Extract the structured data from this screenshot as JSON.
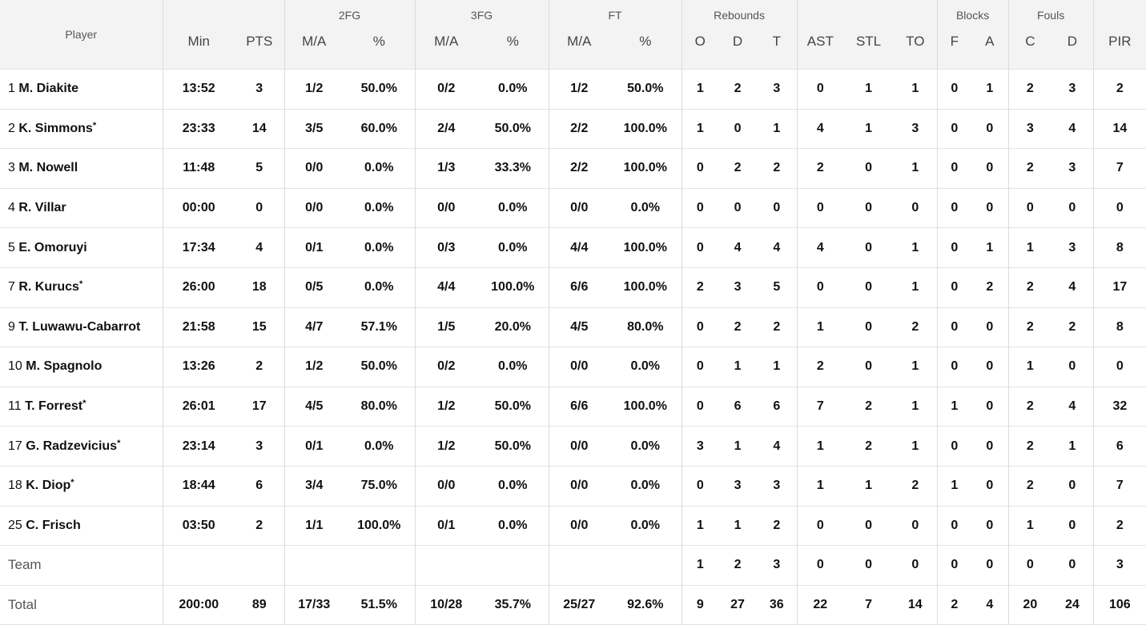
{
  "groups": {
    "fg2": "2FG",
    "fg3": "3FG",
    "ft": "FT",
    "rebounds": "Rebounds",
    "blocks": "Blocks",
    "fouls": "Fouls"
  },
  "headers": {
    "player": "Player",
    "min": "Min",
    "pts": "PTS",
    "fg2_ma": "M/A",
    "fg2_pct": "%",
    "fg3_ma": "M/A",
    "fg3_pct": "%",
    "ft_ma": "M/A",
    "ft_pct": "%",
    "reb_o": "O",
    "reb_d": "D",
    "reb_t": "T",
    "ast": "AST",
    "stl": "STL",
    "to": "TO",
    "blk_f": "F",
    "blk_a": "A",
    "foul_c": "C",
    "foul_d": "D",
    "pir": "PIR"
  },
  "players": [
    {
      "num": "1",
      "name": "M. Diakite",
      "star": "",
      "min": "13:52",
      "pts": "3",
      "fg2_ma": "1/2",
      "fg2_pct": "50.0%",
      "fg3_ma": "0/2",
      "fg3_pct": "0.0%",
      "ft_ma": "1/2",
      "ft_pct": "50.0%",
      "reb_o": "1",
      "reb_d": "2",
      "reb_t": "3",
      "ast": "0",
      "stl": "1",
      "to": "1",
      "blk_f": "0",
      "blk_a": "1",
      "foul_c": "2",
      "foul_d": "3",
      "pir": "2"
    },
    {
      "num": "2",
      "name": "K. Simmons",
      "star": "*",
      "min": "23:33",
      "pts": "14",
      "fg2_ma": "3/5",
      "fg2_pct": "60.0%",
      "fg3_ma": "2/4",
      "fg3_pct": "50.0%",
      "ft_ma": "2/2",
      "ft_pct": "100.0%",
      "reb_o": "1",
      "reb_d": "0",
      "reb_t": "1",
      "ast": "4",
      "stl": "1",
      "to": "3",
      "blk_f": "0",
      "blk_a": "0",
      "foul_c": "3",
      "foul_d": "4",
      "pir": "14"
    },
    {
      "num": "3",
      "name": "M. Nowell",
      "star": "",
      "min": "11:48",
      "pts": "5",
      "fg2_ma": "0/0",
      "fg2_pct": "0.0%",
      "fg3_ma": "1/3",
      "fg3_pct": "33.3%",
      "ft_ma": "2/2",
      "ft_pct": "100.0%",
      "reb_o": "0",
      "reb_d": "2",
      "reb_t": "2",
      "ast": "2",
      "stl": "0",
      "to": "1",
      "blk_f": "0",
      "blk_a": "0",
      "foul_c": "2",
      "foul_d": "3",
      "pir": "7"
    },
    {
      "num": "4",
      "name": "R. Villar",
      "star": "",
      "min": "00:00",
      "pts": "0",
      "fg2_ma": "0/0",
      "fg2_pct": "0.0%",
      "fg3_ma": "0/0",
      "fg3_pct": "0.0%",
      "ft_ma": "0/0",
      "ft_pct": "0.0%",
      "reb_o": "0",
      "reb_d": "0",
      "reb_t": "0",
      "ast": "0",
      "stl": "0",
      "to": "0",
      "blk_f": "0",
      "blk_a": "0",
      "foul_c": "0",
      "foul_d": "0",
      "pir": "0"
    },
    {
      "num": "5",
      "name": "E. Omoruyi",
      "star": "",
      "min": "17:34",
      "pts": "4",
      "fg2_ma": "0/1",
      "fg2_pct": "0.0%",
      "fg3_ma": "0/3",
      "fg3_pct": "0.0%",
      "ft_ma": "4/4",
      "ft_pct": "100.0%",
      "reb_o": "0",
      "reb_d": "4",
      "reb_t": "4",
      "ast": "4",
      "stl": "0",
      "to": "1",
      "blk_f": "0",
      "blk_a": "1",
      "foul_c": "1",
      "foul_d": "3",
      "pir": "8"
    },
    {
      "num": "7",
      "name": "R. Kurucs",
      "star": "*",
      "min": "26:00",
      "pts": "18",
      "fg2_ma": "0/5",
      "fg2_pct": "0.0%",
      "fg3_ma": "4/4",
      "fg3_pct": "100.0%",
      "ft_ma": "6/6",
      "ft_pct": "100.0%",
      "reb_o": "2",
      "reb_d": "3",
      "reb_t": "5",
      "ast": "0",
      "stl": "0",
      "to": "1",
      "blk_f": "0",
      "blk_a": "2",
      "foul_c": "2",
      "foul_d": "4",
      "pir": "17"
    },
    {
      "num": "9",
      "name": "T. Luwawu-Cabarrot",
      "star": "",
      "min": "21:58",
      "pts": "15",
      "fg2_ma": "4/7",
      "fg2_pct": "57.1%",
      "fg3_ma": "1/5",
      "fg3_pct": "20.0%",
      "ft_ma": "4/5",
      "ft_pct": "80.0%",
      "reb_o": "0",
      "reb_d": "2",
      "reb_t": "2",
      "ast": "1",
      "stl": "0",
      "to": "2",
      "blk_f": "0",
      "blk_a": "0",
      "foul_c": "2",
      "foul_d": "2",
      "pir": "8"
    },
    {
      "num": "10",
      "name": "M. Spagnolo",
      "star": "",
      "min": "13:26",
      "pts": "2",
      "fg2_ma": "1/2",
      "fg2_pct": "50.0%",
      "fg3_ma": "0/2",
      "fg3_pct": "0.0%",
      "ft_ma": "0/0",
      "ft_pct": "0.0%",
      "reb_o": "0",
      "reb_d": "1",
      "reb_t": "1",
      "ast": "2",
      "stl": "0",
      "to": "1",
      "blk_f": "0",
      "blk_a": "0",
      "foul_c": "1",
      "foul_d": "0",
      "pir": "0"
    },
    {
      "num": "11",
      "name": "T. Forrest",
      "star": "*",
      "min": "26:01",
      "pts": "17",
      "fg2_ma": "4/5",
      "fg2_pct": "80.0%",
      "fg3_ma": "1/2",
      "fg3_pct": "50.0%",
      "ft_ma": "6/6",
      "ft_pct": "100.0%",
      "reb_o": "0",
      "reb_d": "6",
      "reb_t": "6",
      "ast": "7",
      "stl": "2",
      "to": "1",
      "blk_f": "1",
      "blk_a": "0",
      "foul_c": "2",
      "foul_d": "4",
      "pir": "32"
    },
    {
      "num": "17",
      "name": "G. Radzevicius",
      "star": "*",
      "min": "23:14",
      "pts": "3",
      "fg2_ma": "0/1",
      "fg2_pct": "0.0%",
      "fg3_ma": "1/2",
      "fg3_pct": "50.0%",
      "ft_ma": "0/0",
      "ft_pct": "0.0%",
      "reb_o": "3",
      "reb_d": "1",
      "reb_t": "4",
      "ast": "1",
      "stl": "2",
      "to": "1",
      "blk_f": "0",
      "blk_a": "0",
      "foul_c": "2",
      "foul_d": "1",
      "pir": "6"
    },
    {
      "num": "18",
      "name": "K. Diop",
      "star": "*",
      "min": "18:44",
      "pts": "6",
      "fg2_ma": "3/4",
      "fg2_pct": "75.0%",
      "fg3_ma": "0/0",
      "fg3_pct": "0.0%",
      "ft_ma": "0/0",
      "ft_pct": "0.0%",
      "reb_o": "0",
      "reb_d": "3",
      "reb_t": "3",
      "ast": "1",
      "stl": "1",
      "to": "2",
      "blk_f": "1",
      "blk_a": "0",
      "foul_c": "2",
      "foul_d": "0",
      "pir": "7"
    },
    {
      "num": "25",
      "name": "C. Frisch",
      "star": "",
      "min": "03:50",
      "pts": "2",
      "fg2_ma": "1/1",
      "fg2_pct": "100.0%",
      "fg3_ma": "0/1",
      "fg3_pct": "0.0%",
      "ft_ma": "0/0",
      "ft_pct": "0.0%",
      "reb_o": "1",
      "reb_d": "1",
      "reb_t": "2",
      "ast": "0",
      "stl": "0",
      "to": "0",
      "blk_f": "0",
      "blk_a": "0",
      "foul_c": "1",
      "foul_d": "0",
      "pir": "2"
    }
  ],
  "team": {
    "label": "Team",
    "reb_o": "1",
    "reb_d": "2",
    "reb_t": "3",
    "ast": "0",
    "stl": "0",
    "to": "0",
    "blk_f": "0",
    "blk_a": "0",
    "foul_c": "0",
    "foul_d": "0",
    "pir": "3"
  },
  "total": {
    "label": "Total",
    "min": "200:00",
    "pts": "89",
    "fg2_ma": "17/33",
    "fg2_pct": "51.5%",
    "fg3_ma": "10/28",
    "fg3_pct": "35.7%",
    "ft_ma": "25/27",
    "ft_pct": "92.6%",
    "reb_o": "9",
    "reb_d": "27",
    "reb_t": "36",
    "ast": "22",
    "stl": "7",
    "to": "14",
    "blk_f": "2",
    "blk_a": "4",
    "foul_c": "20",
    "foul_d": "24",
    "pir": "106"
  }
}
